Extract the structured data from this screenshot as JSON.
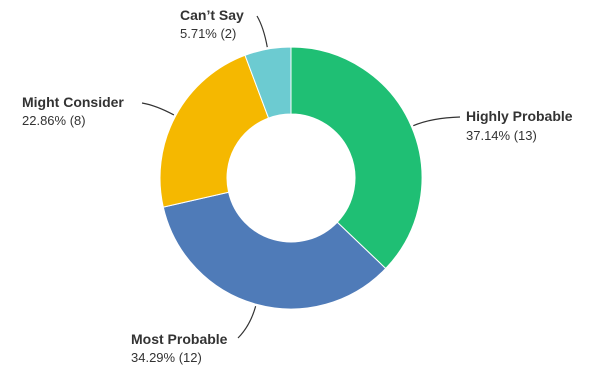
{
  "chart_data": {
    "type": "pie",
    "variant": "donut",
    "slices": [
      {
        "name": "Highly Probable",
        "percent": 37.14,
        "count": 13,
        "value_label": "37.14% (13)",
        "color": "#1fbf74"
      },
      {
        "name": "Most Probable",
        "percent": 34.29,
        "count": 12,
        "value_label": "34.29% (12)",
        "color": "#4f7bb8"
      },
      {
        "name": "Might Consider",
        "percent": 22.86,
        "count": 8,
        "value_label": "22.86% (8)",
        "color": "#f5b800"
      },
      {
        "name": "Can’t Say",
        "percent": 5.71,
        "count": 2,
        "value_label": "5.71% (2)",
        "color": "#6ccbd1"
      }
    ],
    "legend": "none",
    "labels": "outside-with-leader-lines"
  }
}
